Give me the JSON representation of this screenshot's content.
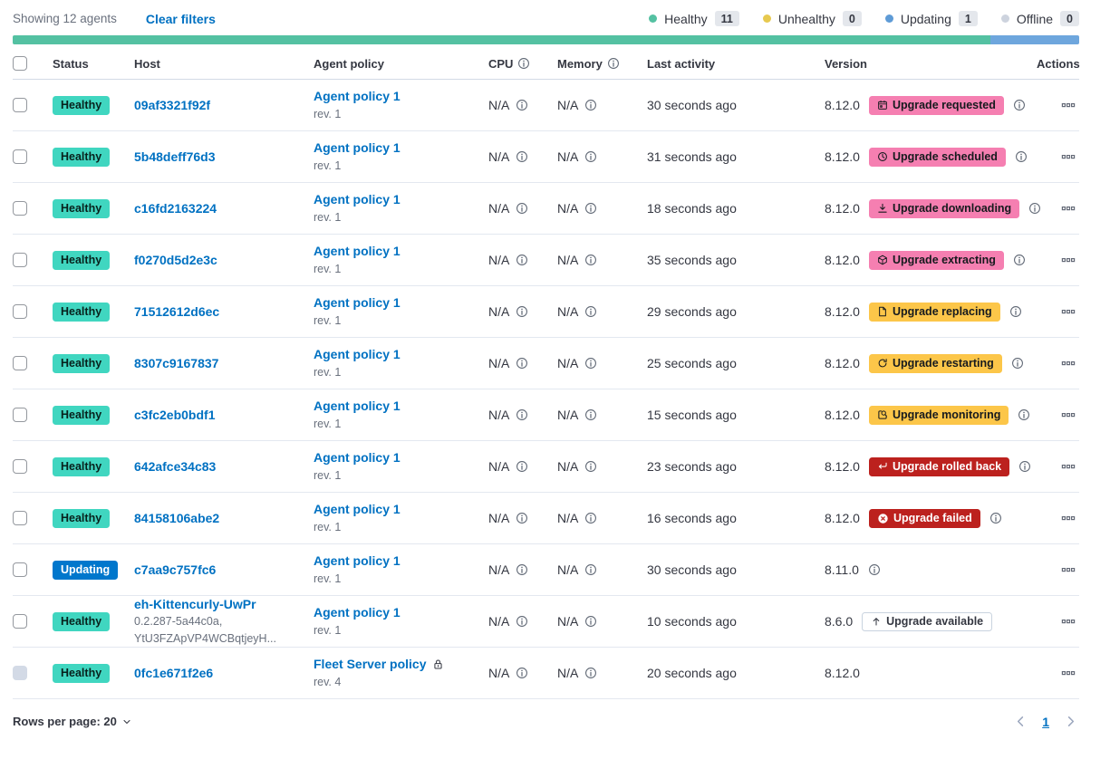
{
  "toolbar": {
    "showing": "Showing 12 agents",
    "clear_filters": "Clear filters"
  },
  "legend": {
    "items": [
      {
        "label": "Healthy",
        "count": "11",
        "color": "#54C1A2"
      },
      {
        "label": "Unhealthy",
        "count": "0",
        "color": "#E7C94F"
      },
      {
        "label": "Updating",
        "count": "1",
        "color": "#5E9BD6"
      },
      {
        "label": "Offline",
        "count": "0",
        "color": "#CDD3DE"
      }
    ]
  },
  "progress": {
    "segments": [
      {
        "status": "healthy",
        "color": "#54C1A2",
        "fraction": 0.917
      },
      {
        "status": "updating",
        "color": "#6EA6DD",
        "fraction": 0.083
      }
    ]
  },
  "table": {
    "columns": {
      "status": "Status",
      "host": "Host",
      "policy": "Agent policy",
      "cpu": "CPU",
      "memory": "Memory",
      "last_activity": "Last activity",
      "version": "Version",
      "actions": "Actions"
    },
    "rows": [
      {
        "status": {
          "label": "Healthy",
          "type": "healthy"
        },
        "host": {
          "name": "09af3321f92f",
          "sub": []
        },
        "policy": {
          "name": "Agent policy 1",
          "rev": "rev. 1",
          "locked": false
        },
        "cpu": "N/A",
        "memory": "N/A",
        "last_activity": "30 seconds ago",
        "version": "8.12.0",
        "upgrade_badge": {
          "label": "Upgrade requested",
          "icon": "calendar-icon",
          "style": "pink"
        },
        "version_info_icon": true,
        "checkbox_disabled": false
      },
      {
        "status": {
          "label": "Healthy",
          "type": "healthy"
        },
        "host": {
          "name": "5b48deff76d3",
          "sub": []
        },
        "policy": {
          "name": "Agent policy 1",
          "rev": "rev. 1",
          "locked": false
        },
        "cpu": "N/A",
        "memory": "N/A",
        "last_activity": "31 seconds ago",
        "version": "8.12.0",
        "upgrade_badge": {
          "label": "Upgrade scheduled",
          "icon": "clock-icon",
          "style": "pink"
        },
        "version_info_icon": true,
        "checkbox_disabled": false
      },
      {
        "status": {
          "label": "Healthy",
          "type": "healthy"
        },
        "host": {
          "name": "c16fd2163224",
          "sub": []
        },
        "policy": {
          "name": "Agent policy 1",
          "rev": "rev. 1",
          "locked": false
        },
        "cpu": "N/A",
        "memory": "N/A",
        "last_activity": "18 seconds ago",
        "version": "8.12.0",
        "upgrade_badge": {
          "label": "Upgrade downloading",
          "icon": "download-icon",
          "style": "pink"
        },
        "version_info_icon": true,
        "checkbox_disabled": false
      },
      {
        "status": {
          "label": "Healthy",
          "type": "healthy"
        },
        "host": {
          "name": "f0270d5d2e3c",
          "sub": []
        },
        "policy": {
          "name": "Agent policy 1",
          "rev": "rev. 1",
          "locked": false
        },
        "cpu": "N/A",
        "memory": "N/A",
        "last_activity": "35 seconds ago",
        "version": "8.12.0",
        "upgrade_badge": {
          "label": "Upgrade extracting",
          "icon": "package-icon",
          "style": "pink"
        },
        "version_info_icon": true,
        "checkbox_disabled": false
      },
      {
        "status": {
          "label": "Healthy",
          "type": "healthy"
        },
        "host": {
          "name": "71512612d6ec",
          "sub": []
        },
        "policy": {
          "name": "Agent policy 1",
          "rev": "rev. 1",
          "locked": false
        },
        "cpu": "N/A",
        "memory": "N/A",
        "last_activity": "29 seconds ago",
        "version": "8.12.0",
        "upgrade_badge": {
          "label": "Upgrade replacing",
          "icon": "document-icon",
          "style": "warning"
        },
        "version_info_icon": true,
        "checkbox_disabled": false
      },
      {
        "status": {
          "label": "Healthy",
          "type": "healthy"
        },
        "host": {
          "name": "8307c9167837",
          "sub": []
        },
        "policy": {
          "name": "Agent policy 1",
          "rev": "rev. 1",
          "locked": false
        },
        "cpu": "N/A",
        "memory": "N/A",
        "last_activity": "25 seconds ago",
        "version": "8.12.0",
        "upgrade_badge": {
          "label": "Upgrade restarting",
          "icon": "refresh-icon",
          "style": "warning"
        },
        "version_info_icon": true,
        "checkbox_disabled": false
      },
      {
        "status": {
          "label": "Healthy",
          "type": "healthy"
        },
        "host": {
          "name": "c3fc2eb0bdf1",
          "sub": []
        },
        "policy": {
          "name": "Agent policy 1",
          "rev": "rev. 1",
          "locked": false
        },
        "cpu": "N/A",
        "memory": "N/A",
        "last_activity": "15 seconds ago",
        "version": "8.12.0",
        "upgrade_badge": {
          "label": "Upgrade monitoring",
          "icon": "inspect-icon",
          "style": "warning"
        },
        "version_info_icon": true,
        "checkbox_disabled": false
      },
      {
        "status": {
          "label": "Healthy",
          "type": "healthy"
        },
        "host": {
          "name": "642afce34c83",
          "sub": []
        },
        "policy": {
          "name": "Agent policy 1",
          "rev": "rev. 1",
          "locked": false
        },
        "cpu": "N/A",
        "memory": "N/A",
        "last_activity": "23 seconds ago",
        "version": "8.12.0",
        "upgrade_badge": {
          "label": "Upgrade rolled back",
          "icon": "return-arrow-icon",
          "style": "danger"
        },
        "version_info_icon": true,
        "checkbox_disabled": false
      },
      {
        "status": {
          "label": "Healthy",
          "type": "healthy"
        },
        "host": {
          "name": "84158106abe2",
          "sub": []
        },
        "policy": {
          "name": "Agent policy 1",
          "rev": "rev. 1",
          "locked": false
        },
        "cpu": "N/A",
        "memory": "N/A",
        "last_activity": "16 seconds ago",
        "version": "8.12.0",
        "upgrade_badge": {
          "label": "Upgrade failed",
          "icon": "error-circle-icon",
          "style": "danger"
        },
        "version_info_icon": true,
        "checkbox_disabled": false
      },
      {
        "status": {
          "label": "Updating",
          "type": "updating"
        },
        "host": {
          "name": "c7aa9c757fc6",
          "sub": []
        },
        "policy": {
          "name": "Agent policy 1",
          "rev": "rev. 1",
          "locked": false
        },
        "cpu": "N/A",
        "memory": "N/A",
        "last_activity": "30 seconds ago",
        "version": "8.11.0",
        "upgrade_badge": null,
        "version_info_icon": true,
        "checkbox_disabled": false
      },
      {
        "status": {
          "label": "Healthy",
          "type": "healthy"
        },
        "host": {
          "name": "eh-Kittencurly-UwPr",
          "sub": [
            "0.2.287-5a44c0a,",
            "YtU3FZApVP4WCBqtjeyH..."
          ]
        },
        "policy": {
          "name": "Agent policy 1",
          "rev": "rev. 1",
          "locked": false
        },
        "cpu": "N/A",
        "memory": "N/A",
        "last_activity": "10 seconds ago",
        "version": "8.6.0",
        "upgrade_badge": {
          "label": "Upgrade available",
          "icon": "arrow-up-icon",
          "style": "hollow"
        },
        "version_info_icon": false,
        "checkbox_disabled": false
      },
      {
        "status": {
          "label": "Healthy",
          "type": "healthy"
        },
        "host": {
          "name": "0fc1e671f2e6",
          "sub": []
        },
        "policy": {
          "name": "Fleet Server policy",
          "rev": "rev. 4",
          "locked": true
        },
        "cpu": "N/A",
        "memory": "N/A",
        "last_activity": "20 seconds ago",
        "version": "8.12.0",
        "upgrade_badge": null,
        "version_info_icon": false,
        "checkbox_disabled": true
      }
    ]
  },
  "footer": {
    "rows_per_page_label": "Rows per page: 20",
    "page_number": "1"
  },
  "icons": {
    "used": [
      "info-icon",
      "calendar-icon",
      "clock-icon",
      "download-icon",
      "package-icon",
      "document-icon",
      "refresh-icon",
      "inspect-icon",
      "return-arrow-icon",
      "error-circle-icon",
      "arrow-up-icon",
      "lock-icon",
      "boxes-horizontal-icon",
      "chevron-down-icon",
      "chevron-left-icon",
      "chevron-right-icon"
    ]
  },
  "colors": {
    "healthy_badge": "#40D6C0",
    "updating_badge": "#0077CC",
    "pink_badge": "#F57FB1",
    "warning_badge": "#FCC649",
    "danger_badge": "#BC211E",
    "link": "#0071C2"
  }
}
